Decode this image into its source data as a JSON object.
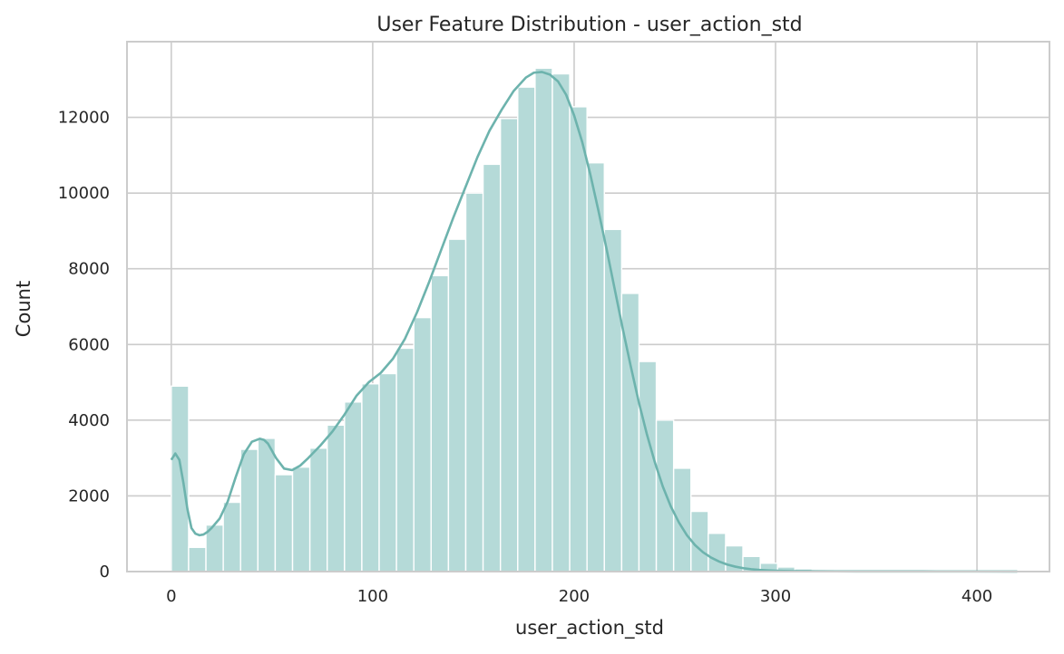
{
  "chart_data": {
    "type": "histogram",
    "title": "User Feature Distribution - user_action_std",
    "xlabel": "user_action_std",
    "ylabel": "Count",
    "xlim": [
      -22,
      436
    ],
    "ylim": [
      0,
      14000
    ],
    "xticks": [
      0,
      100,
      200,
      300,
      400
    ],
    "yticks": [
      0,
      2000,
      4000,
      6000,
      8000,
      10000,
      12000
    ],
    "grid": true,
    "bar_color": "#b5dad8",
    "kde_color": "#6db3ad",
    "bins": [
      {
        "x0": 0.0,
        "x1": 8.6,
        "count": 4900
      },
      {
        "x0": 8.6,
        "x1": 17.2,
        "count": 640
      },
      {
        "x0": 17.2,
        "x1": 25.8,
        "count": 1230
      },
      {
        "x0": 25.8,
        "x1": 34.4,
        "count": 1830
      },
      {
        "x0": 34.4,
        "x1": 43.0,
        "count": 3230
      },
      {
        "x0": 43.0,
        "x1": 51.6,
        "count": 3520
      },
      {
        "x0": 51.6,
        "x1": 60.2,
        "count": 2560
      },
      {
        "x0": 60.2,
        "x1": 68.8,
        "count": 2760
      },
      {
        "x0": 68.8,
        "x1": 77.4,
        "count": 3260
      },
      {
        "x0": 77.4,
        "x1": 86.0,
        "count": 3870
      },
      {
        "x0": 86.0,
        "x1": 94.6,
        "count": 4480
      },
      {
        "x0": 94.6,
        "x1": 103.2,
        "count": 4960
      },
      {
        "x0": 103.2,
        "x1": 111.8,
        "count": 5230
      },
      {
        "x0": 111.8,
        "x1": 120.4,
        "count": 5900
      },
      {
        "x0": 120.4,
        "x1": 129.0,
        "count": 6710
      },
      {
        "x0": 129.0,
        "x1": 137.6,
        "count": 7820
      },
      {
        "x0": 137.6,
        "x1": 146.2,
        "count": 8780
      },
      {
        "x0": 146.2,
        "x1": 154.8,
        "count": 10000
      },
      {
        "x0": 154.8,
        "x1": 163.4,
        "count": 10760
      },
      {
        "x0": 163.4,
        "x1": 172.0,
        "count": 11970
      },
      {
        "x0": 172.0,
        "x1": 180.6,
        "count": 12800
      },
      {
        "x0": 180.6,
        "x1": 189.2,
        "count": 13300
      },
      {
        "x0": 189.2,
        "x1": 197.8,
        "count": 13150
      },
      {
        "x0": 197.8,
        "x1": 206.4,
        "count": 12280
      },
      {
        "x0": 206.4,
        "x1": 215.0,
        "count": 10800
      },
      {
        "x0": 215.0,
        "x1": 223.6,
        "count": 9040
      },
      {
        "x0": 223.6,
        "x1": 232.2,
        "count": 7350
      },
      {
        "x0": 232.2,
        "x1": 240.8,
        "count": 5550
      },
      {
        "x0": 240.8,
        "x1": 249.4,
        "count": 4000
      },
      {
        "x0": 249.4,
        "x1": 258.0,
        "count": 2730
      },
      {
        "x0": 258.0,
        "x1": 266.6,
        "count": 1590
      },
      {
        "x0": 266.6,
        "x1": 275.2,
        "count": 1010
      },
      {
        "x0": 275.2,
        "x1": 283.8,
        "count": 680
      },
      {
        "x0": 283.8,
        "x1": 292.4,
        "count": 400
      },
      {
        "x0": 292.4,
        "x1": 301.0,
        "count": 220
      },
      {
        "x0": 301.0,
        "x1": 309.6,
        "count": 120
      },
      {
        "x0": 309.6,
        "x1": 318.2,
        "count": 70
      },
      {
        "x0": 318.2,
        "x1": 326.8,
        "count": 40
      },
      {
        "x0": 326.8,
        "x1": 335.4,
        "count": 25
      },
      {
        "x0": 335.4,
        "x1": 344.0,
        "count": 15
      },
      {
        "x0": 344.0,
        "x1": 352.6,
        "count": 10
      },
      {
        "x0": 352.6,
        "x1": 361.2,
        "count": 8
      },
      {
        "x0": 361.2,
        "x1": 369.8,
        "count": 6
      },
      {
        "x0": 369.8,
        "x1": 378.4,
        "count": 5
      },
      {
        "x0": 378.4,
        "x1": 387.0,
        "count": 4
      },
      {
        "x0": 387.0,
        "x1": 395.6,
        "count": 3
      },
      {
        "x0": 395.6,
        "x1": 404.2,
        "count": 3
      },
      {
        "x0": 404.2,
        "x1": 412.8,
        "count": 2
      },
      {
        "x0": 412.8,
        "x1": 421.4,
        "count": 2
      }
    ],
    "kde": {
      "x": [
        0,
        2,
        4,
        6,
        8,
        10,
        12,
        14,
        16,
        18,
        20,
        24,
        28,
        32,
        36,
        40,
        44,
        46,
        48,
        52,
        56,
        60,
        64,
        68,
        74,
        80,
        86,
        92,
        98,
        104,
        110,
        116,
        122,
        128,
        134,
        140,
        146,
        152,
        158,
        164,
        170,
        176,
        180,
        184,
        188,
        192,
        196,
        200,
        204,
        208,
        212,
        216,
        220,
        224,
        228,
        232,
        236,
        240,
        244,
        248,
        252,
        256,
        260,
        264,
        268,
        272,
        276,
        280,
        284,
        288,
        292,
        296,
        300,
        304,
        308,
        312,
        320,
        330,
        340,
        360,
        380,
        400,
        420
      ],
      "y": [
        2950,
        3120,
        2950,
        2350,
        1650,
        1150,
        1000,
        960,
        980,
        1050,
        1150,
        1400,
        1850,
        2500,
        3100,
        3430,
        3510,
        3480,
        3380,
        3000,
        2720,
        2680,
        2800,
        3000,
        3330,
        3700,
        4150,
        4650,
        5000,
        5250,
        5620,
        6150,
        6850,
        7650,
        8500,
        9350,
        10150,
        10950,
        11650,
        12200,
        12700,
        13050,
        13180,
        13200,
        13130,
        12950,
        12600,
        12050,
        11350,
        10500,
        9550,
        8550,
        7500,
        6450,
        5450,
        4500,
        3650,
        2900,
        2250,
        1720,
        1300,
        960,
        700,
        510,
        370,
        265,
        185,
        130,
        90,
        62,
        44,
        32,
        24,
        18,
        14,
        11,
        8,
        6,
        5,
        4,
        3,
        3,
        2
      ]
    }
  }
}
